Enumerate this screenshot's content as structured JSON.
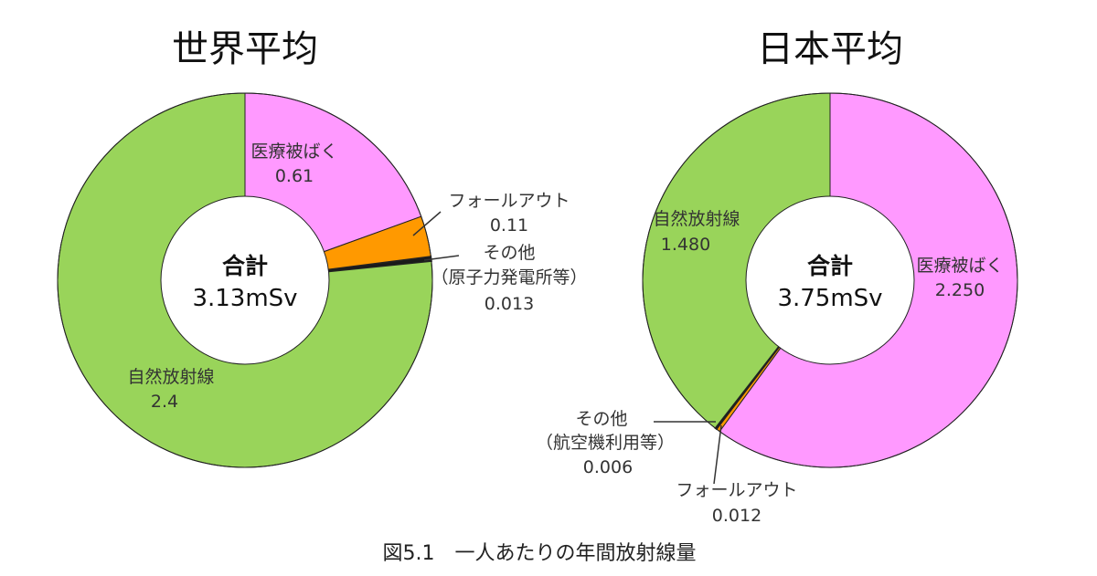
{
  "figure_caption": "図5.1　一人あたりの年間放射線量",
  "colors": {
    "natural": "#99d45a",
    "medical": "#ff99ff",
    "fallout": "#ff9900",
    "other": "#1a1a1a",
    "stroke": "#222222",
    "hole": "#ffffff"
  },
  "chart_data": [
    {
      "type": "pie",
      "title": "世界平均",
      "center_label": "合計",
      "total_text": "3.13mSv",
      "total": 3.13,
      "unit": "mSv",
      "slices": [
        {
          "key": "medical",
          "label": "医療被ばく",
          "value_text": "0.61",
          "value": 0.61
        },
        {
          "key": "fallout",
          "label": "フォールアウト",
          "value_text": "0.11",
          "value": 0.11
        },
        {
          "key": "other",
          "label": "その他",
          "sublabel": "（原子力発電所等）",
          "value_text": "0.013",
          "value": 0.013
        },
        {
          "key": "natural",
          "label": "自然放射線",
          "value_text": "2.4",
          "value": 2.4
        }
      ]
    },
    {
      "type": "pie",
      "title": "日本平均",
      "center_label": "合計",
      "total_text": "3.75mSv",
      "total": 3.75,
      "unit": "mSv",
      "slices": [
        {
          "key": "medical",
          "label": "医療被ばく",
          "value_text": "2.250",
          "value": 2.25
        },
        {
          "key": "fallout",
          "label": "フォールアウト",
          "value_text": "0.012",
          "value": 0.012
        },
        {
          "key": "other",
          "label": "その他",
          "sublabel": "（航空機利用等）",
          "value_text": "0.006",
          "value": 0.006
        },
        {
          "key": "natural",
          "label": "自然放射線",
          "value_text": "1.480",
          "value": 1.48
        }
      ]
    }
  ]
}
